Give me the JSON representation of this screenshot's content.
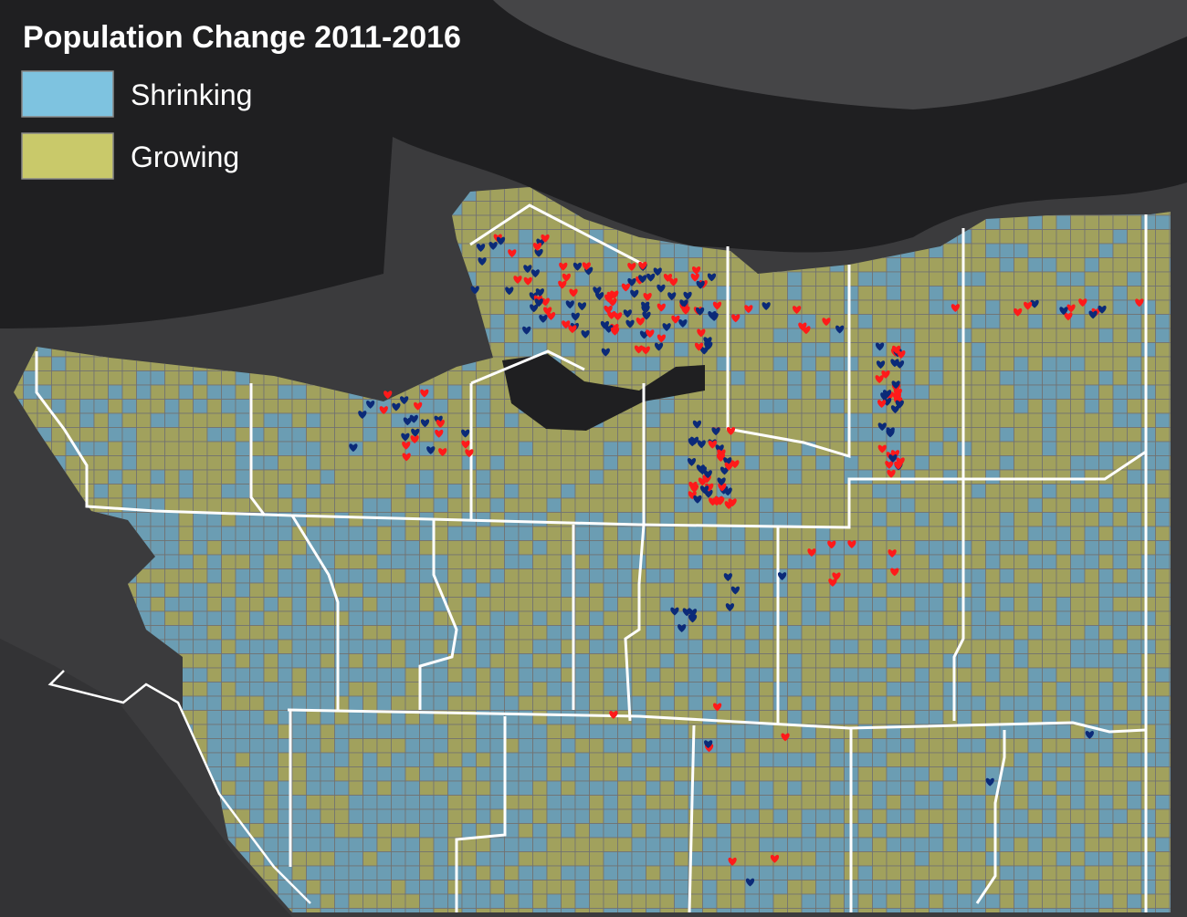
{
  "legend": {
    "title": "Population Change 2011-2016",
    "items": [
      {
        "label": "Shrinking",
        "color": "#7ec3e0"
      },
      {
        "label": "Growing",
        "color": "#c9c96a"
      }
    ]
  }
}
